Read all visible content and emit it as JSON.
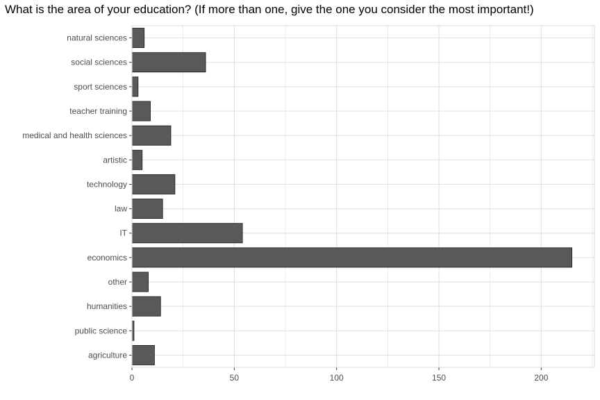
{
  "chart_data": {
    "type": "bar",
    "orientation": "horizontal",
    "title": "What is the area of your education? (If more than one, give the one you consider the most important!)",
    "xlabel": "",
    "ylabel": "",
    "categories": [
      "natural sciences",
      "social sciences",
      "sport sciences",
      "teacher training",
      "medical and health sciences",
      "artistic",
      "technology",
      "law",
      "IT",
      "economics",
      "other",
      "humanities",
      "public science",
      "agriculture"
    ],
    "values": [
      6,
      36,
      3,
      9,
      19,
      5,
      21,
      15,
      54,
      215,
      8,
      14,
      1,
      11
    ],
    "xlim": [
      0,
      226
    ],
    "x_ticks": [
      0,
      50,
      100,
      150,
      200
    ],
    "grid": true,
    "legend": "none",
    "colors": {
      "bar_fill": "#595959",
      "bar_stroke": "#1a1a1a",
      "grid": "#dedede",
      "panel_border": "#d9d9d9",
      "tick_text": "#4d4d4d"
    }
  }
}
